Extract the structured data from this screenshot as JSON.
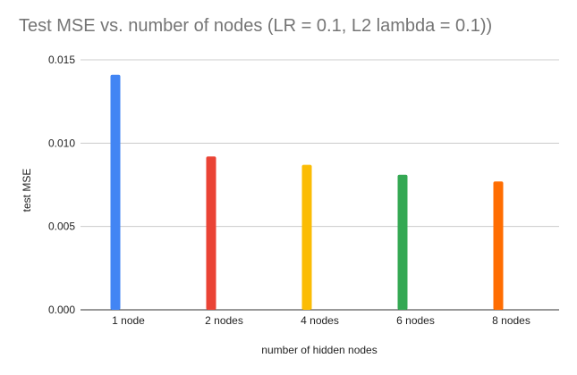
{
  "chart_data": {
    "type": "bar",
    "title": "Test MSE vs. number of nodes (LR = 0.1, L2 lambda = 0.1))",
    "xlabel": "number of hidden nodes",
    "ylabel": "test MSE",
    "categories": [
      "1 node",
      "2 nodes",
      "4 nodes",
      "6 nodes",
      "8 nodes"
    ],
    "values": [
      0.0141,
      0.0092,
      0.0087,
      0.0081,
      0.0077
    ],
    "colors": [
      "#4285f4",
      "#ea4335",
      "#fbbc04",
      "#34a853",
      "#ff6d01"
    ],
    "ylim": [
      0,
      0.015
    ],
    "yticks": [
      "0.000",
      "0.005",
      "0.010",
      "0.015"
    ],
    "grid": true,
    "legend": "none"
  }
}
